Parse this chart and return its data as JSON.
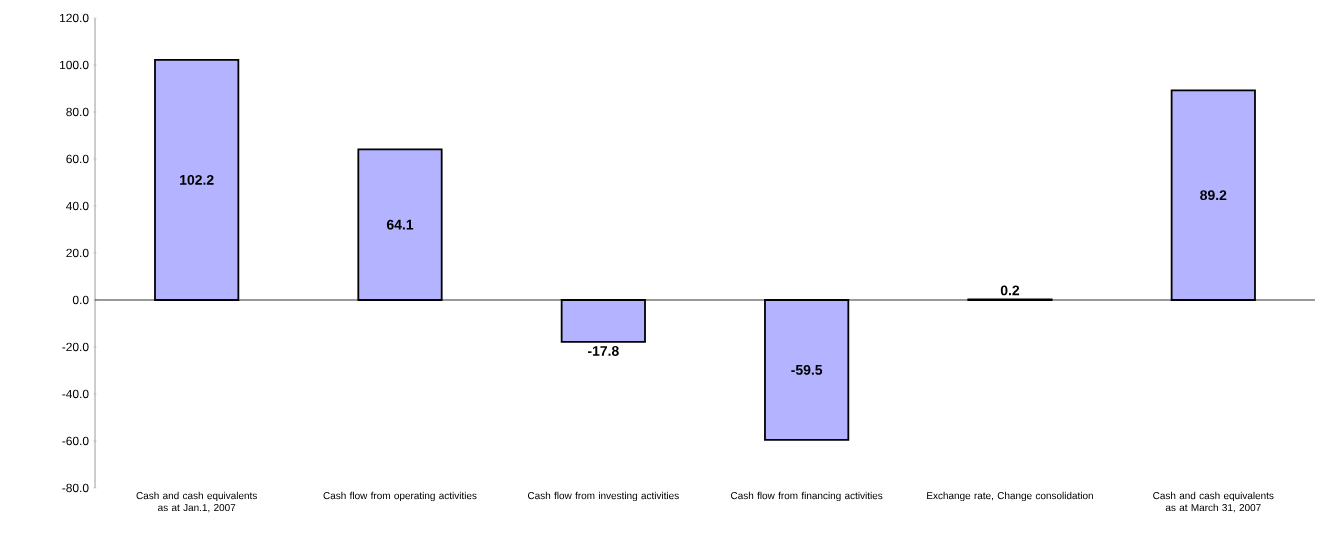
{
  "chart_data": {
    "type": "bar",
    "categories": [
      "Cash and cash equivalents as at Jan.1, 2007",
      "Cash flow from operating activities",
      "Cash flow from investing activities",
      "Cash flow from financing activities",
      "Exchange rate, Change consolidation",
      "Cash and cash equivalents as at March 31, 2007"
    ],
    "values": [
      102.2,
      64.1,
      -17.8,
      -59.5,
      0.2,
      89.2
    ],
    "color": "#b3b3ff",
    "data_labels": true,
    "ylim": [
      -80,
      120
    ],
    "yticks": [
      {
        "value": -80,
        "label": "-80.0"
      },
      {
        "value": -60,
        "label": "-60.0"
      },
      {
        "value": -40,
        "label": "-40.0"
      },
      {
        "value": -20,
        "label": "-20.0"
      },
      {
        "value": 0,
        "label": "0.0"
      },
      {
        "value": 20,
        "label": "20.0"
      },
      {
        "value": 40,
        "label": "40.0"
      },
      {
        "value": 60,
        "label": "60.0"
      },
      {
        "value": 80,
        "label": "80.0"
      },
      {
        "value": 100,
        "label": "100.0"
      },
      {
        "value": 120,
        "label": "120.0"
      }
    ]
  }
}
